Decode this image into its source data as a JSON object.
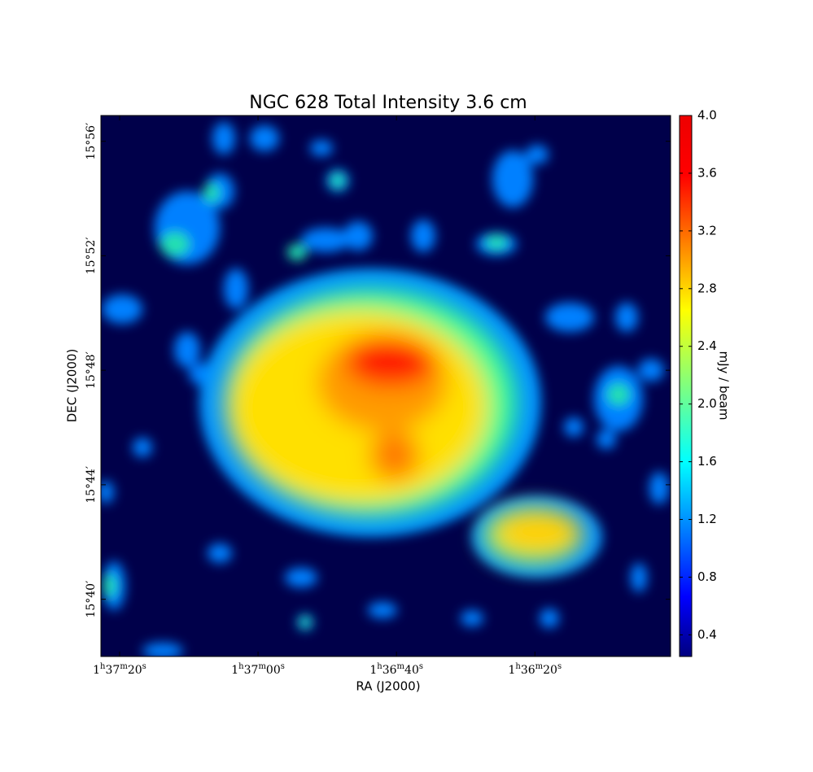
{
  "chart_data": {
    "type": "image",
    "title": "NGC 628 Total Intensity 3.6 cm",
    "x_label": "RA (J2000)",
    "y_label": "DEC (J2000)",
    "xlim": [
      5842.7,
      5760.4
    ],
    "xticks": [
      {
        "value": 5840,
        "label": "1h37m20s"
      },
      {
        "value": 5820,
        "label": "1h37m00s"
      },
      {
        "value": 5800,
        "label": "1h36m40s"
      },
      {
        "value": 5780,
        "label": "1h36m20s"
      }
    ],
    "ylim": [
      938.0,
      956.9
    ],
    "yticks": [
      {
        "value": 940,
        "label": "15°40′"
      },
      {
        "value": 944,
        "label": "15°44′"
      },
      {
        "value": 948,
        "label": "15°48′"
      },
      {
        "value": 952,
        "label": "15°52′"
      },
      {
        "value": 956,
        "label": "15°56′"
      }
    ],
    "colorbar": {
      "label": "mJy / beam",
      "colormap": "jet",
      "clim": [
        0.25,
        4.0
      ],
      "ticks": [
        0.4,
        0.8,
        1.2,
        1.6,
        {
          "value": 2.0,
          "label": "2.0"
        },
        2.4,
        2.8,
        3.2,
        3.6,
        {
          "value": 4.0,
          "label": "4.0"
        }
      ]
    }
  }
}
